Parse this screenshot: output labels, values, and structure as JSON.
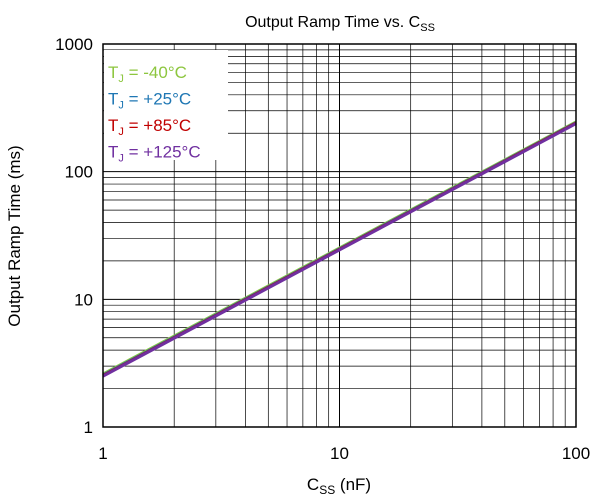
{
  "chart_data": {
    "type": "line",
    "title": "Output Ramp Time vs. C",
    "title_sub": "SS",
    "xlabel_main": "C",
    "xlabel_sub": "SS",
    "xlabel_tail": " (nF)",
    "ylabel": "Output Ramp Time (ms)",
    "x_scale": "log",
    "y_scale": "log",
    "xlim": [
      1,
      100
    ],
    "ylim": [
      1,
      1000
    ],
    "x_ticks": [
      1,
      10,
      100
    ],
    "x_tick_labels": [
      "1",
      "10",
      "100"
    ],
    "y_ticks": [
      1,
      10,
      100,
      1000
    ],
    "y_tick_labels": [
      "1",
      "10",
      "100",
      "1000"
    ],
    "grid": true,
    "legend_position": "top-left",
    "series": [
      {
        "name": "T",
        "name_sub": "J",
        "name_tail": " = -40°C",
        "color": "#8dc63f",
        "x": [
          1,
          100
        ],
        "y": [
          2.6,
          245
        ]
      },
      {
        "name": "T",
        "name_sub": "J",
        "name_tail": " = +25°C",
        "color": "#1f77b4",
        "x": [
          1,
          100
        ],
        "y": [
          2.55,
          242
        ]
      },
      {
        "name": "T",
        "name_sub": "J",
        "name_tail": " = +85°C",
        "color": "#c00000",
        "x": [
          1,
          100
        ],
        "y": [
          2.52,
          240
        ]
      },
      {
        "name": "T",
        "name_sub": "J",
        "name_tail": " = +125°C",
        "color": "#7030a0",
        "x": [
          1,
          100
        ],
        "y": [
          2.5,
          238
        ]
      }
    ]
  }
}
